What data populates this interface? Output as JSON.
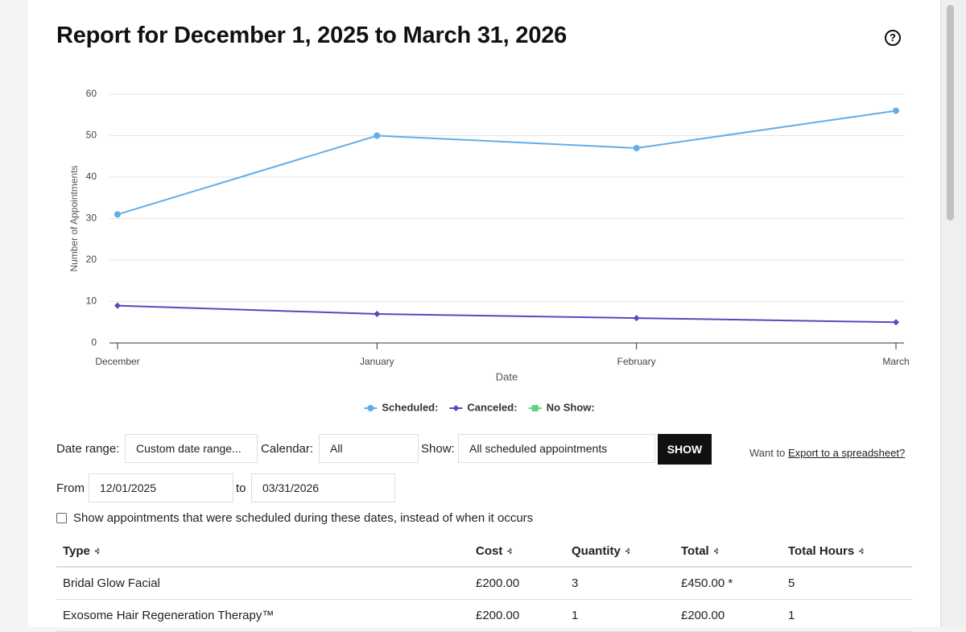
{
  "header": {
    "title": "Report for December 1, 2025 to March 31, 2026"
  },
  "chart_data": {
    "type": "line",
    "categories": [
      "December",
      "January",
      "February",
      "March"
    ],
    "series": [
      {
        "name": "Scheduled:",
        "color": "#63ade6",
        "marker": "circle",
        "values": [
          31,
          50,
          47,
          56
        ]
      },
      {
        "name": "Canceled:",
        "color": "#5a48bd",
        "marker": "diamond",
        "values": [
          9,
          7,
          6,
          5
        ]
      },
      {
        "name": "No Show:",
        "color": "#62d27c",
        "marker": "square",
        "values": [
          null,
          null,
          null,
          null
        ]
      }
    ],
    "x_label": "Date",
    "y_label": "Number of Appointments",
    "ylim": [
      0,
      60
    ],
    "yticks": [
      0,
      10,
      20,
      30,
      40,
      50,
      60
    ],
    "grid": true,
    "legend": "bottom"
  },
  "filters": {
    "date_range_label": "Date range:",
    "date_range_value": "Custom date range...",
    "calendar_label": "Calendar:",
    "calendar_value": "All",
    "show_label": "Show:",
    "show_value": "All scheduled appointments",
    "show_button": "SHOW",
    "export_prefix": "Want to",
    "export_link": "Export to a spreadsheet?",
    "from_label": "From",
    "from_value": "12/01/2025",
    "to_label": "to",
    "to_value": "03/31/2026",
    "checkbox_label": "Show appointments that were scheduled during these dates, instead of when it occurs"
  },
  "table": {
    "headers": [
      "Type",
      "Cost",
      "Quantity",
      "Total",
      "Total Hours"
    ],
    "rows": [
      [
        "Bridal Glow Facial",
        "£200.00",
        "3",
        "£450.00 *",
        "5"
      ],
      [
        "Exosome Hair Regeneration Therapy™",
        "£200.00",
        "1",
        "£200.00",
        "1"
      ]
    ]
  }
}
